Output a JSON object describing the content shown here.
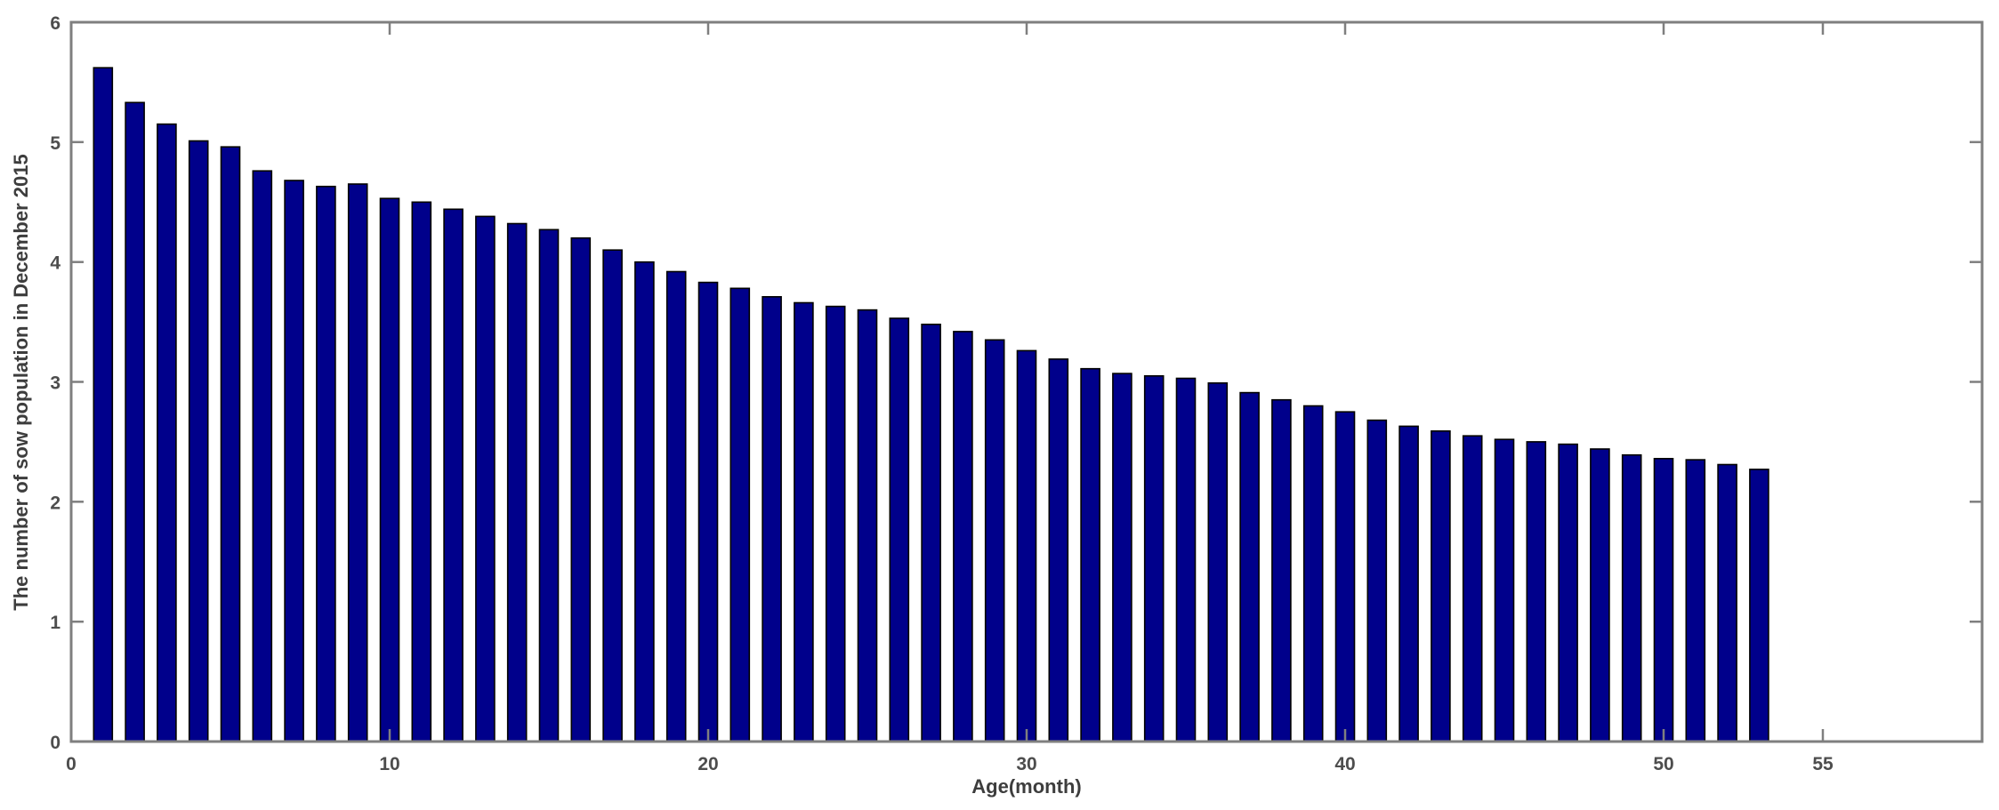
{
  "figure": {
    "background": "#ffffff"
  },
  "chart_data": {
    "type": "bar",
    "title": "",
    "xlabel": "Age(month)",
    "ylabel": "The number of sow population in December 2015",
    "xlim": [
      0,
      60
    ],
    "ylim": [
      0,
      6
    ],
    "x_ticks": [
      0,
      10,
      20,
      30,
      40,
      50,
      55
    ],
    "y_ticks": [
      0,
      1,
      2,
      3,
      4,
      5,
      6
    ],
    "grid": false,
    "legend": "none",
    "bar_color": "#00008B",
    "bar_edge_color": "#000000",
    "axis_color": "#7f7f7f",
    "tick_label_color": "#4d4d4d",
    "x": [
      1,
      2,
      3,
      4,
      5,
      6,
      7,
      8,
      9,
      10,
      11,
      12,
      13,
      14,
      15,
      16,
      17,
      18,
      19,
      20,
      21,
      22,
      23,
      24,
      25,
      26,
      27,
      28,
      29,
      30,
      31,
      32,
      33,
      34,
      35,
      36,
      37,
      38,
      39,
      40,
      41,
      42,
      43,
      44,
      45,
      46,
      47,
      48,
      49,
      50,
      51,
      52,
      53
    ],
    "values": [
      5.62,
      5.33,
      5.15,
      5.01,
      4.96,
      4.76,
      4.68,
      4.63,
      4.65,
      4.53,
      4.5,
      4.44,
      4.38,
      4.32,
      4.27,
      4.2,
      4.1,
      4.0,
      3.92,
      3.83,
      3.78,
      3.71,
      3.66,
      3.63,
      3.6,
      3.53,
      3.48,
      3.42,
      3.35,
      3.26,
      3.19,
      3.11,
      3.07,
      3.05,
      3.03,
      2.99,
      2.91,
      2.85,
      2.8,
      2.75,
      2.68,
      2.63,
      2.59,
      2.55,
      2.52,
      2.5,
      2.48,
      2.44,
      2.39,
      2.36,
      2.35,
      2.31,
      2.27
    ]
  }
}
